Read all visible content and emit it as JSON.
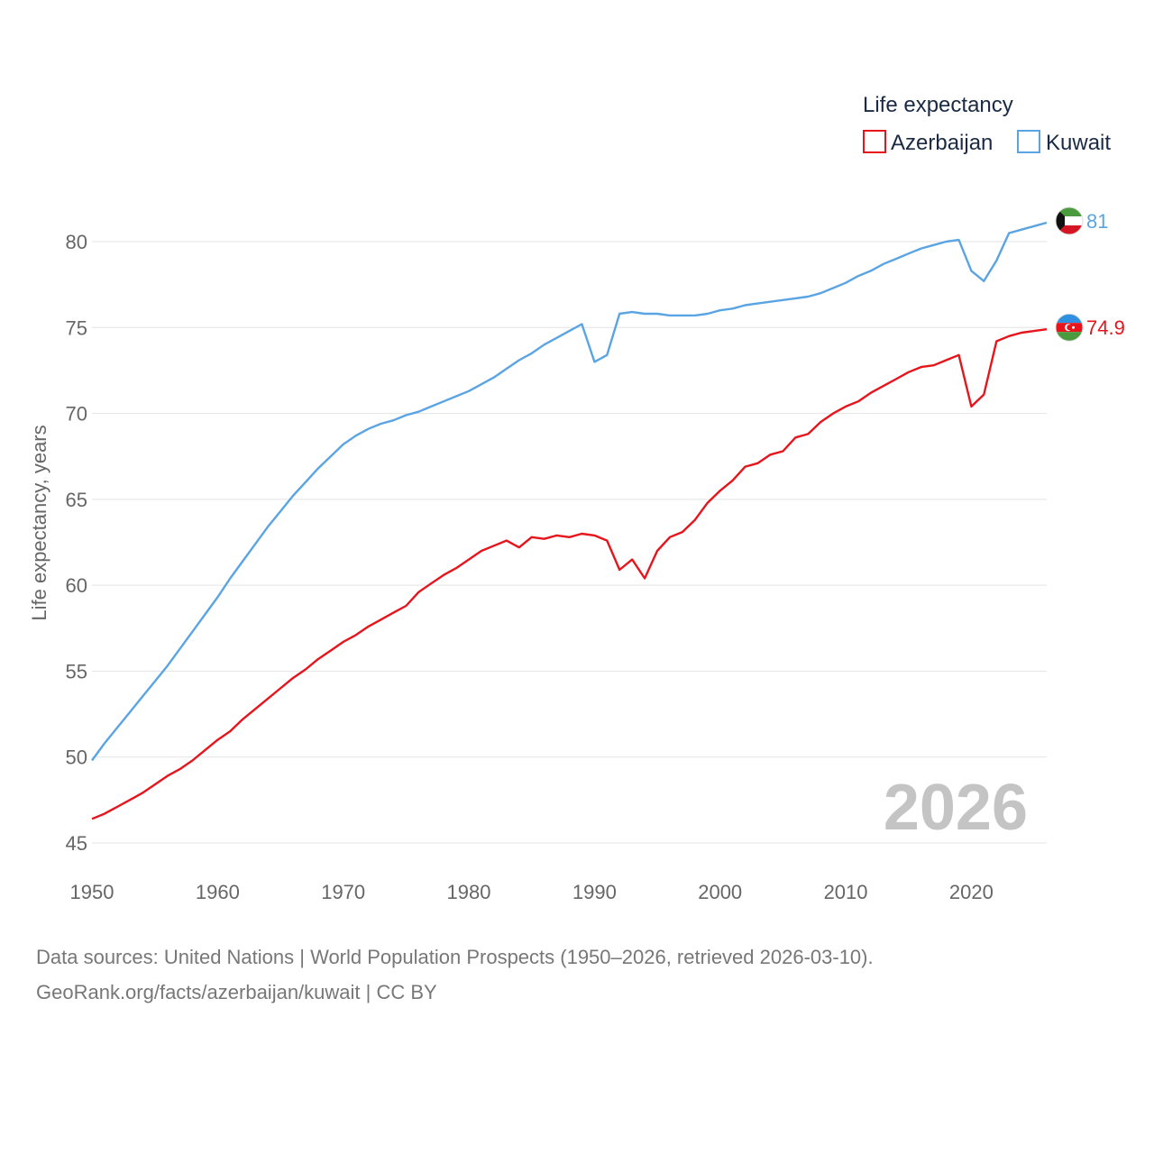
{
  "chart_data": {
    "type": "line",
    "title": "",
    "legend_title": "Life expectancy",
    "legend_position": "top-right",
    "xlabel": "",
    "ylabel": "Life expectancy, years",
    "xlim": [
      1950,
      2026
    ],
    "ylim": [
      45,
      82
    ],
    "x_ticks": [
      1950,
      1960,
      1970,
      1980,
      1990,
      2000,
      2010,
      2020
    ],
    "y_ticks": [
      45,
      50,
      55,
      60,
      65,
      70,
      75,
      80
    ],
    "grid": true,
    "watermark_year": "2026",
    "x": [
      1950,
      1951,
      1952,
      1953,
      1954,
      1955,
      1956,
      1957,
      1958,
      1959,
      1960,
      1961,
      1962,
      1963,
      1964,
      1965,
      1966,
      1967,
      1968,
      1969,
      1970,
      1971,
      1972,
      1973,
      1974,
      1975,
      1976,
      1977,
      1978,
      1979,
      1980,
      1981,
      1982,
      1983,
      1984,
      1985,
      1986,
      1987,
      1988,
      1989,
      1990,
      1991,
      1992,
      1993,
      1994,
      1995,
      1996,
      1997,
      1998,
      1999,
      2000,
      2001,
      2002,
      2003,
      2004,
      2005,
      2006,
      2007,
      2008,
      2009,
      2010,
      2011,
      2012,
      2013,
      2014,
      2015,
      2016,
      2017,
      2018,
      2019,
      2020,
      2021,
      2022,
      2023,
      2024,
      2025,
      2026
    ],
    "series": [
      {
        "name": "Azerbaijan",
        "color": "#e8141c",
        "end_label": "74.9",
        "flag_icon": "azerbaijan-flag-icon",
        "values": [
          46.4,
          46.7,
          47.1,
          47.5,
          47.9,
          48.4,
          48.9,
          49.3,
          49.8,
          50.4,
          51.0,
          51.5,
          52.2,
          52.8,
          53.4,
          54.0,
          54.6,
          55.1,
          55.7,
          56.2,
          56.7,
          57.1,
          57.6,
          58.0,
          58.4,
          58.8,
          59.6,
          60.1,
          60.6,
          61.0,
          61.5,
          62.0,
          62.3,
          62.6,
          62.2,
          62.8,
          62.7,
          62.9,
          62.8,
          63.0,
          62.9,
          62.6,
          60.9,
          61.5,
          60.4,
          62.0,
          62.8,
          63.1,
          63.8,
          64.8,
          65.5,
          66.1,
          66.9,
          67.1,
          67.6,
          67.8,
          68.6,
          68.8,
          69.5,
          70.0,
          70.4,
          70.7,
          71.2,
          71.6,
          72.0,
          72.4,
          72.7,
          72.8,
          73.1,
          73.4,
          70.4,
          71.1,
          74.2,
          74.5,
          74.7,
          74.8,
          74.9
        ]
      },
      {
        "name": "Kuwait",
        "color": "#5aa4e3",
        "end_label": "81",
        "flag_icon": "kuwait-flag-icon",
        "values": [
          49.8,
          50.8,
          51.7,
          52.6,
          53.5,
          54.4,
          55.3,
          56.3,
          57.3,
          58.3,
          59.3,
          60.4,
          61.4,
          62.4,
          63.4,
          64.3,
          65.2,
          66.0,
          66.8,
          67.5,
          68.2,
          68.7,
          69.1,
          69.4,
          69.6,
          69.9,
          70.1,
          70.4,
          70.7,
          71.0,
          71.3,
          71.7,
          72.1,
          72.6,
          73.1,
          73.5,
          74.0,
          74.4,
          74.8,
          75.2,
          73.0,
          73.4,
          75.8,
          75.9,
          75.8,
          75.8,
          75.7,
          75.7,
          75.7,
          75.8,
          76.0,
          76.1,
          76.3,
          76.4,
          76.5,
          76.6,
          76.7,
          76.8,
          77.0,
          77.3,
          77.6,
          78.0,
          78.3,
          78.7,
          79.0,
          79.3,
          79.6,
          79.8,
          80.0,
          80.1,
          78.3,
          77.7,
          78.9,
          80.5,
          80.7,
          80.9,
          81.1
        ]
      }
    ]
  },
  "footer": {
    "sources": "Data sources: United Nations | World Population Prospects (1950–2026, retrieved 2026-03-10).",
    "credit": "GeoRank.org/facts/azerbaijan/kuwait | CC BY"
  }
}
